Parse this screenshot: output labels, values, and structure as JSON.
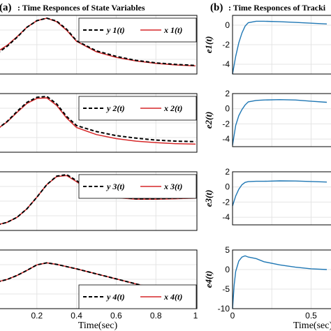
{
  "chart_data": [
    {
      "panel": "a",
      "type": "line",
      "title": "Time Responces of State Variables",
      "panel_letter": "(a)",
      "xlabel": "Time(sec)",
      "x_ticks": [
        "0.2",
        "0.4",
        "0.6",
        "0.8",
        "1"
      ],
      "subplots": [
        {
          "series": [
            {
              "name": "y 1(t)",
              "color": "#000000",
              "dash": "dashed",
              "x": [
                0,
                0.05,
                0.1,
                0.15,
                0.2,
                0.25,
                0.3,
                0.35,
                0.4,
                0.5,
                0.6,
                0.7,
                0.8,
                0.9,
                1.0
              ],
              "y": [
                0.3,
                0.44,
                0.62,
                0.82,
                0.95,
                1.0,
                0.94,
                0.78,
                0.55,
                0.35,
                0.24,
                0.16,
                0.11,
                0.08,
                0.06
              ]
            },
            {
              "name": "x 1(t)",
              "color": "#d62728",
              "dash": "solid",
              "x": [
                0,
                0.05,
                0.1,
                0.15,
                0.2,
                0.25,
                0.3,
                0.35,
                0.4,
                0.5,
                0.6,
                0.7,
                0.8,
                0.9,
                1.0
              ],
              "y": [
                0.33,
                0.46,
                0.63,
                0.82,
                0.95,
                1.0,
                0.93,
                0.76,
                0.54,
                0.33,
                0.22,
                0.15,
                0.1,
                0.07,
                0.05
              ]
            }
          ]
        },
        {
          "series": [
            {
              "name": "y 2(t)",
              "color": "#000000",
              "dash": "dashed",
              "x": [
                0,
                0.05,
                0.1,
                0.15,
                0.2,
                0.25,
                0.3,
                0.35,
                0.4,
                0.5,
                0.6,
                0.7,
                0.8,
                0.9,
                1.0
              ],
              "y": [
                0.35,
                0.5,
                0.7,
                0.88,
                0.98,
                1.0,
                0.85,
                0.6,
                0.42,
                0.3,
                0.22,
                0.17,
                0.13,
                0.11,
                0.1
              ]
            },
            {
              "name": "x 2(t)",
              "color": "#d62728",
              "dash": "solid",
              "x": [
                0,
                0.05,
                0.1,
                0.15,
                0.2,
                0.25,
                0.3,
                0.35,
                0.4,
                0.5,
                0.6,
                0.7,
                0.8,
                0.9,
                1.0
              ],
              "y": [
                0.35,
                0.49,
                0.68,
                0.86,
                0.96,
                0.97,
                0.82,
                0.57,
                0.38,
                0.24,
                0.16,
                0.11,
                0.08,
                0.06,
                0.05
              ]
            }
          ]
        },
        {
          "series": [
            {
              "name": "y 3(t)",
              "color": "#000000",
              "dash": "dashed",
              "x": [
                0,
                0.05,
                0.1,
                0.15,
                0.2,
                0.25,
                0.3,
                0.35,
                0.4,
                0.45,
                0.5,
                0.6,
                0.7,
                0.8,
                0.9,
                1.0
              ],
              "y": [
                0.0,
                0.05,
                0.15,
                0.32,
                0.55,
                0.8,
                0.97,
                1.0,
                0.88,
                0.74,
                0.64,
                0.55,
                0.52,
                0.52,
                0.53,
                0.54
              ]
            },
            {
              "name": "x 3(t)",
              "color": "#d62728",
              "dash": "solid",
              "x": [
                0,
                0.05,
                0.1,
                0.15,
                0.2,
                0.25,
                0.3,
                0.35,
                0.4,
                0.45,
                0.5,
                0.6,
                0.7,
                0.8,
                0.9,
                1.0
              ],
              "y": [
                0.0,
                0.05,
                0.15,
                0.32,
                0.55,
                0.8,
                0.96,
                0.98,
                0.86,
                0.72,
                0.62,
                0.54,
                0.51,
                0.51,
                0.52,
                0.53
              ]
            }
          ]
        },
        {
          "series": [
            {
              "name": "y 4(t)",
              "color": "#000000",
              "dash": "dashed",
              "x": [
                0,
                0.05,
                0.1,
                0.15,
                0.2,
                0.25,
                0.3,
                0.4,
                0.5,
                0.6,
                0.7,
                0.8,
                0.9,
                1.0
              ],
              "y": [
                0.42,
                0.47,
                0.55,
                0.65,
                0.76,
                0.8,
                0.77,
                0.68,
                0.58,
                0.48,
                0.38,
                0.28,
                0.18,
                0.06
              ]
            },
            {
              "name": "x 4(t)",
              "color": "#d62728",
              "dash": "solid",
              "x": [
                0,
                0.05,
                0.1,
                0.15,
                0.2,
                0.25,
                0.3,
                0.4,
                0.5,
                0.6,
                0.7,
                0.8,
                0.9,
                1.0
              ],
              "y": [
                0.42,
                0.47,
                0.55,
                0.65,
                0.76,
                0.8,
                0.77,
                0.68,
                0.58,
                0.48,
                0.38,
                0.28,
                0.18,
                0.06
              ]
            }
          ]
        }
      ]
    },
    {
      "panel": "b",
      "type": "line",
      "title": "Time Responces of Tracki",
      "panel_letter": "(b)",
      "xlabel": "Time(sec)",
      "x_ticks": [
        "0",
        "0.5"
      ],
      "subplots": [
        {
          "ylabel": "e1(t)",
          "ylim": [
            -5,
            1
          ],
          "yticks": [
            "0",
            "-2",
            "-4"
          ],
          "series": [
            {
              "name": "e1",
              "color": "#1f77b4",
              "x": [
                0,
                0.02,
                0.04,
                0.06,
                0.08,
                0.1,
                0.15,
                0.2,
                0.3,
                0.4,
                0.5,
                0.6,
                0.7
              ],
              "y": [
                -5.0,
                -3.2,
                -1.8,
                -0.8,
                -0.1,
                0.25,
                0.4,
                0.4,
                0.35,
                0.28,
                0.2,
                0.12,
                0.05
              ]
            }
          ]
        },
        {
          "ylabel": "e2(t)",
          "ylim": [
            -5,
            2
          ],
          "yticks": [
            "2",
            "0",
            "-2",
            "-4"
          ],
          "series": [
            {
              "name": "e2",
              "color": "#1f77b4",
              "x": [
                0,
                0.02,
                0.04,
                0.06,
                0.08,
                0.1,
                0.15,
                0.2,
                0.3,
                0.4,
                0.5,
                0.6,
                0.7
              ],
              "y": [
                -4.8,
                -2.2,
                -0.9,
                -0.1,
                0.5,
                0.9,
                1.1,
                1.15,
                1.2,
                1.15,
                1.0,
                0.85,
                0.7
              ]
            }
          ]
        },
        {
          "ylabel": "e3(t)",
          "ylim": [
            -5,
            2
          ],
          "yticks": [
            "2",
            "0",
            "-2",
            "-4"
          ],
          "series": [
            {
              "name": "e3",
              "color": "#1f77b4",
              "x": [
                0,
                0.02,
                0.04,
                0.06,
                0.08,
                0.1,
                0.15,
                0.2,
                0.3,
                0.4,
                0.5,
                0.6,
                0.7
              ],
              "y": [
                -2.5,
                -1.2,
                -0.3,
                0.3,
                0.6,
                0.7,
                0.75,
                0.75,
                0.8,
                0.78,
                0.72,
                0.65,
                0.58
              ]
            }
          ]
        },
        {
          "ylabel": "e4(t)",
          "ylim": [
            -10,
            5
          ],
          "yticks": [
            "5",
            "0",
            "-5",
            "-10"
          ],
          "series": [
            {
              "name": "e4",
              "color": "#1f77b4",
              "x": [
                0,
                0.01,
                0.02,
                0.04,
                0.06,
                0.08,
                0.1,
                0.15,
                0.2,
                0.3,
                0.4,
                0.5,
                0.6,
                0.7
              ],
              "y": [
                -10.0,
                -4.0,
                -0.5,
                2.2,
                3.2,
                3.5,
                3.2,
                2.8,
                2.0,
                1.2,
                0.6,
                0.2,
                0.0,
                -0.1
              ]
            }
          ]
        }
      ]
    }
  ]
}
